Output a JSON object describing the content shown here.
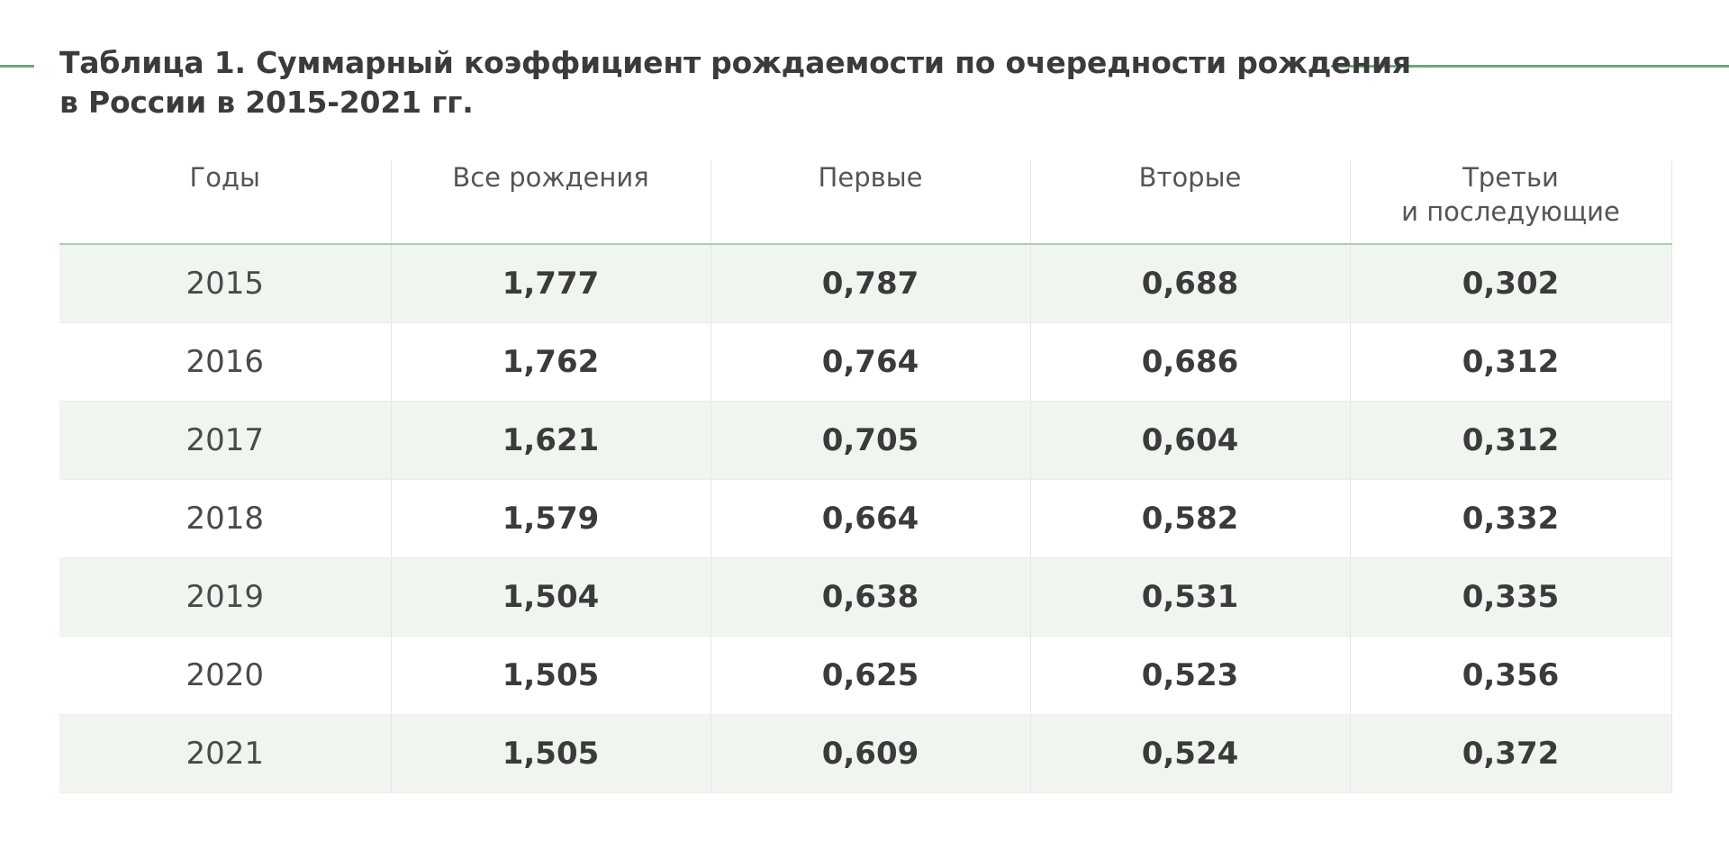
{
  "title": {
    "line1": "Таблица 1. Суммарный коэффициент рождаемости по очередности рождения",
    "line2": "в России в 2015-2021 гг."
  },
  "colors": {
    "accent": "#6aac6f",
    "row_tint": "#f0f5f0",
    "header_rule": "#a9d1ab"
  },
  "table": {
    "headers": [
      {
        "line1": "Годы",
        "line2": ""
      },
      {
        "line1": "Все рождения",
        "line2": ""
      },
      {
        "line1": "Первые",
        "line2": ""
      },
      {
        "line1": "Вторые",
        "line2": ""
      },
      {
        "line1": "Третьи",
        "line2": "и последующие"
      }
    ],
    "rows": [
      [
        "2015",
        "1,777",
        "0,787",
        "0,688",
        "0,302"
      ],
      [
        "2016",
        "1,762",
        "0,764",
        "0,686",
        "0,312"
      ],
      [
        "2017",
        "1,621",
        "0,705",
        "0,604",
        "0,312"
      ],
      [
        "2018",
        "1,579",
        "0,664",
        "0,582",
        "0,332"
      ],
      [
        "2019",
        "1,504",
        "0,638",
        "0,531",
        "0,335"
      ],
      [
        "2020",
        "1,505",
        "0,625",
        "0,523",
        "0,356"
      ],
      [
        "2021",
        "1,505",
        "0,609",
        "0,524",
        "0,372"
      ]
    ]
  }
}
